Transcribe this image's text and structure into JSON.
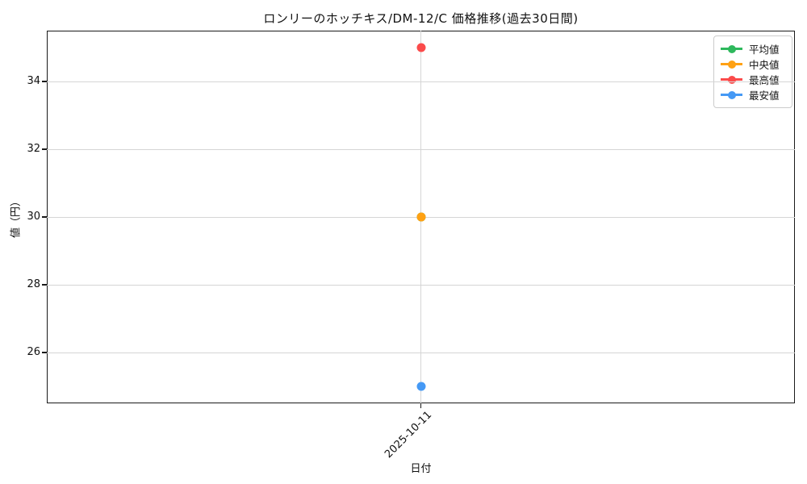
{
  "chart_data": {
    "type": "line",
    "title": "ロンリーのホッチキス/DM-12/C 価格推移(過去30日間)",
    "xlabel": "日付",
    "ylabel": "値（円）",
    "x": [
      "2025-10-11"
    ],
    "series": [
      {
        "name": "平均値",
        "color": "#2eb85c",
        "values": [
          30
        ]
      },
      {
        "name": "中央値",
        "color": "#ffa113",
        "values": [
          30
        ]
      },
      {
        "name": "最高値",
        "color": "#fb4b4b",
        "values": [
          35
        ]
      },
      {
        "name": "最安値",
        "color": "#4599f5",
        "values": [
          25
        ]
      }
    ],
    "ylim": [
      24.5,
      35.5
    ],
    "yticks": [
      26,
      28,
      30,
      32,
      34
    ],
    "grid": true,
    "legend_position": "upper right",
    "axis_color": "#1a1a1a",
    "grid_color": "#d5d5d5",
    "background_color": "#ffffff"
  }
}
